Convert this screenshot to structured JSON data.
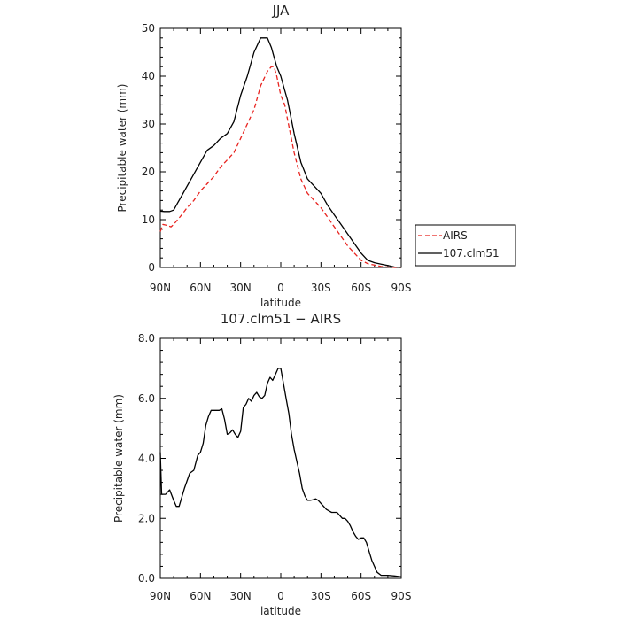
{
  "chart_data": [
    {
      "type": "line",
      "title": "JJA",
      "xlabel": "latitude",
      "ylabel": "Precipitable water (mm)",
      "xlim": [
        90,
        -90
      ],
      "ylim": [
        0,
        50
      ],
      "x_ticks": [
        90,
        60,
        30,
        0,
        -30,
        -60,
        -90
      ],
      "x_tick_labels": [
        "90N",
        "60N",
        "30N",
        "0",
        "30S",
        "60S",
        "90S"
      ],
      "y_ticks": [
        0,
        10,
        20,
        30,
        40,
        50
      ],
      "y_tick_labels": [
        "0",
        "10",
        "20",
        "30",
        "40",
        "50"
      ],
      "legend_position": "right-outside",
      "series": [
        {
          "name": "AIRS",
          "color": "#e8231f",
          "dash": "dashed",
          "x": [
            90,
            88,
            85,
            82,
            80,
            77,
            74,
            70,
            65,
            60,
            55,
            50,
            45,
            40,
            35,
            30,
            25,
            20,
            15,
            10,
            7,
            5,
            3,
            0,
            -3,
            -5,
            -10,
            -15,
            -20,
            -25,
            -30,
            -35,
            -40,
            -45,
            -50,
            -55,
            -60,
            -65,
            -70,
            -75,
            -80,
            -85,
            -90
          ],
          "y": [
            7.5,
            9,
            8.8,
            8.5,
            9,
            10,
            11,
            12.5,
            14,
            16,
            17.5,
            19,
            21,
            22.5,
            24,
            27,
            30,
            33,
            38,
            41,
            42,
            42,
            40,
            36,
            34,
            31,
            24,
            18.5,
            15.5,
            14,
            12.5,
            10.5,
            8.5,
            6.5,
            4.5,
            3,
            1.5,
            0.8,
            0.5,
            0.2,
            0.1,
            0,
            0
          ]
        },
        {
          "name": "107.clm51",
          "color": "#000000",
          "dash": "solid",
          "x": [
            90,
            87,
            83,
            80,
            77,
            74,
            70,
            65,
            60,
            55,
            50,
            45,
            40,
            35,
            30,
            25,
            20,
            15,
            10,
            7,
            5,
            3,
            0,
            -3,
            -5,
            -10,
            -15,
            -20,
            -25,
            -30,
            -35,
            -40,
            -45,
            -50,
            -55,
            -60,
            -65,
            -70,
            -75,
            -80,
            -85,
            -90
          ],
          "y": [
            11.8,
            11.7,
            11.7,
            12,
            13.5,
            15,
            17,
            19.5,
            22,
            24.5,
            25.5,
            27,
            28,
            30.5,
            36,
            40,
            45,
            48,
            48,
            46,
            44,
            42,
            40,
            37,
            35,
            28,
            22,
            18.5,
            17,
            15.5,
            13,
            11,
            9,
            7,
            5,
            3,
            1.5,
            1,
            0.7,
            0.4,
            0.1,
            0
          ]
        }
      ]
    },
    {
      "type": "line",
      "title": "107.clm51 − AIRS",
      "xlabel": "latitude",
      "ylabel": "Precipitable water (mm)",
      "xlim": [
        90,
        -90
      ],
      "ylim": [
        0,
        8
      ],
      "x_ticks": [
        90,
        60,
        30,
        0,
        -30,
        -60,
        -90
      ],
      "x_tick_labels": [
        "90N",
        "60N",
        "30N",
        "0",
        "30S",
        "60S",
        "90S"
      ],
      "y_ticks": [
        0,
        2,
        4,
        6,
        8
      ],
      "y_tick_labels": [
        "0.0",
        "2.0",
        "4.0",
        "6.0",
        "8.0"
      ],
      "series": [
        {
          "color": "#000000",
          "dash": "solid",
          "x": [
            90,
            89,
            86,
            83,
            80,
            78,
            76,
            72,
            68,
            65,
            62,
            60,
            58,
            56,
            54,
            52,
            50,
            48,
            46,
            44,
            42,
            40,
            38,
            36,
            34,
            32,
            30,
            28,
            26,
            24,
            22,
            20,
            18,
            16,
            14,
            12,
            10,
            8,
            6,
            4,
            2,
            0,
            -2,
            -4,
            -6,
            -8,
            -10,
            -12,
            -14,
            -16,
            -18,
            -20,
            -22,
            -24,
            -26,
            -28,
            -30,
            -32,
            -34,
            -36,
            -38,
            -40,
            -42,
            -44,
            -46,
            -48,
            -50,
            -52,
            -54,
            -56,
            -58,
            -60,
            -62,
            -64,
            -66,
            -68,
            -70,
            -72,
            -75,
            -80,
            -85,
            -90
          ],
          "y": [
            4.2,
            2.8,
            2.8,
            2.95,
            2.6,
            2.4,
            2.4,
            3,
            3.5,
            3.6,
            4.1,
            4.2,
            4.5,
            5.1,
            5.4,
            5.6,
            5.6,
            5.6,
            5.6,
            5.65,
            5.3,
            4.8,
            4.85,
            4.95,
            4.8,
            4.7,
            4.9,
            5.7,
            5.8,
            6,
            5.9,
            6.1,
            6.2,
            6.05,
            6,
            6.1,
            6.5,
            6.7,
            6.6,
            6.8,
            7,
            7,
            6.5,
            6,
            5.5,
            4.8,
            4.3,
            3.9,
            3.5,
            3,
            2.75,
            2.6,
            2.6,
            2.62,
            2.65,
            2.6,
            2.5,
            2.4,
            2.3,
            2.25,
            2.2,
            2.2,
            2.2,
            2.1,
            2,
            2,
            1.9,
            1.75,
            1.55,
            1.4,
            1.3,
            1.35,
            1.35,
            1.2,
            0.9,
            0.6,
            0.4,
            0.2,
            0.1,
            0.1,
            0.08,
            0.05
          ]
        }
      ]
    }
  ]
}
